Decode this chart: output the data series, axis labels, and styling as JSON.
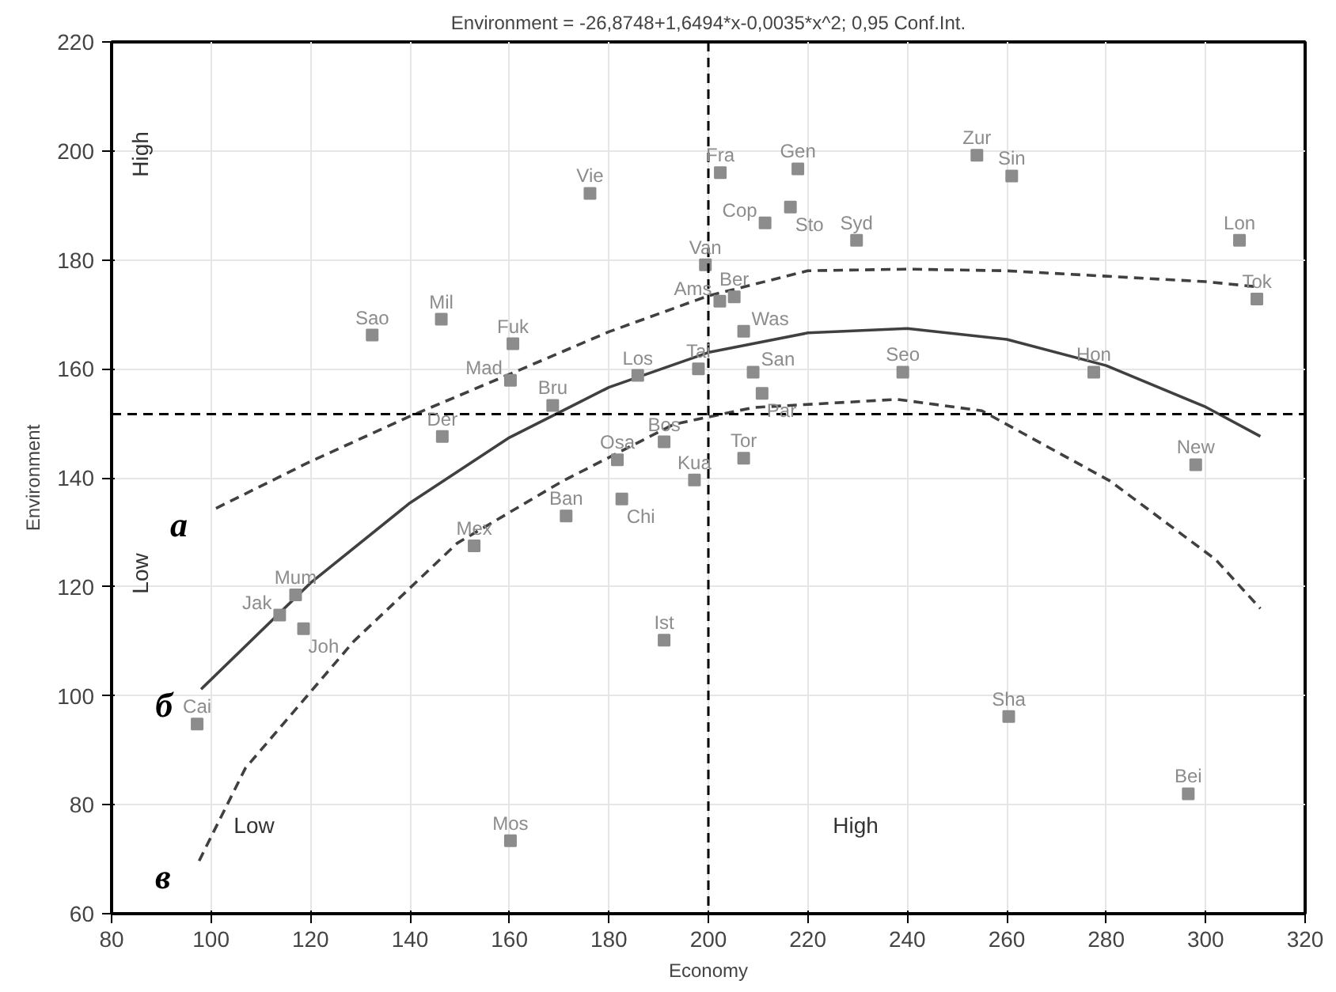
{
  "chart_data": {
    "type": "scatter",
    "title": "Environment = -26,8748+1,6494*x-0,0035*x^2; 0,95 Conf.Int.",
    "xlabel": "Economy",
    "ylabel": "Environment",
    "xlim": [
      80,
      320
    ],
    "ylim": [
      60,
      220
    ],
    "xticks": [
      80,
      100,
      120,
      140,
      160,
      180,
      200,
      220,
      240,
      260,
      280,
      300,
      320
    ],
    "yticks": [
      60,
      80,
      100,
      120,
      140,
      160,
      180,
      200,
      220
    ],
    "grid": true,
    "marker": "square",
    "ref_lines": [
      {
        "axis": "x",
        "value": 200,
        "line_style": "dashed",
        "color": "#000000"
      },
      {
        "axis": "y",
        "value": 151.7,
        "line_style": "dashed",
        "color": "#000000"
      }
    ],
    "annotations": [
      "High",
      "Low",
      "Low",
      "High"
    ],
    "series": [
      {
        "type": "line",
        "name": "a",
        "marker": "none",
        "line_style": "dashed",
        "color": "#404040",
        "x": [
          101,
          120,
          140,
          160,
          180,
          200,
          220,
          240,
          260,
          280,
          300,
          311
        ],
        "values": [
          134.4,
          143,
          151.3,
          159,
          166.8,
          173.4,
          178,
          178.3,
          178,
          177,
          176,
          175
        ]
      },
      {
        "type": "line",
        "name": "б",
        "marker": "none",
        "line_style": "solid",
        "color": "#404040",
        "x": [
          98,
          120,
          140,
          160,
          180,
          200,
          220,
          240,
          260,
          280,
          300,
          311
        ],
        "values": [
          101.2,
          120.7,
          135.4,
          147.4,
          156.6,
          163.0,
          166.6,
          167.4,
          165.4,
          160.6,
          153.0,
          147.6
        ]
      },
      {
        "type": "line",
        "name": "в",
        "marker": "none",
        "line_style": "dashed",
        "color": "#404040",
        "x": [
          97.6,
          106.9,
          128.7,
          149.5,
          170.7,
          193,
          209,
          238,
          255,
          280.8,
          302,
          311
        ],
        "values": [
          69.7,
          86.7,
          110,
          128,
          139.4,
          149.8,
          152.9,
          154.4,
          152.3,
          139.4,
          125,
          116
        ]
      },
      {
        "name": "Vie",
        "color": "#8c8c8c",
        "x": [
          176.2
        ],
        "values": [
          192.2
        ]
      },
      {
        "name": "Fra",
        "color": "#8c8c8c",
        "x": [
          202.4
        ],
        "values": [
          196
        ]
      },
      {
        "name": "Gen",
        "color": "#8c8c8c",
        "x": [
          218
        ],
        "values": [
          196.7
        ]
      },
      {
        "name": "Zur",
        "color": "#8c8c8c",
        "x": [
          254
        ],
        "values": [
          199.2
        ]
      },
      {
        "name": "Sin",
        "color": "#8c8c8c",
        "x": [
          261
        ],
        "values": [
          195.4
        ]
      },
      {
        "name": "Cop",
        "color": "#8c8c8c",
        "x": [
          211.4
        ],
        "values": [
          186.8
        ]
      },
      {
        "name": "Sto",
        "color": "#8c8c8c",
        "x": [
          216.5
        ],
        "values": [
          189.7
        ]
      },
      {
        "name": "Syd",
        "color": "#8c8c8c",
        "x": [
          229.8
        ],
        "values": [
          183.6
        ]
      },
      {
        "name": "Lon",
        "color": "#8c8c8c",
        "x": [
          306.8
        ],
        "values": [
          183.6
        ]
      },
      {
        "name": "Tok",
        "color": "#8c8c8c",
        "x": [
          310.3
        ],
        "values": [
          172.8
        ]
      },
      {
        "name": "Van",
        "color": "#8c8c8c",
        "x": [
          199.4
        ],
        "values": [
          179.1
        ]
      },
      {
        "name": "Ams",
        "color": "#8c8c8c",
        "x": [
          202.3
        ],
        "values": [
          172.4
        ]
      },
      {
        "name": "Ber",
        "color": "#8c8c8c",
        "x": [
          205.2
        ],
        "values": [
          173.2
        ]
      },
      {
        "name": "Was",
        "color": "#8c8c8c",
        "x": [
          207.1
        ],
        "values": [
          166.9
        ]
      },
      {
        "name": "Sao",
        "color": "#8c8c8c",
        "x": [
          132.4
        ],
        "values": [
          166.2
        ]
      },
      {
        "name": "Mil",
        "color": "#8c8c8c",
        "x": [
          146.3
        ],
        "values": [
          169.1
        ]
      },
      {
        "name": "Fuk",
        "color": "#8c8c8c",
        "x": [
          160.7
        ],
        "values": [
          164.6
        ]
      },
      {
        "name": "Mad",
        "color": "#8c8c8c",
        "x": [
          160.2
        ],
        "values": [
          157.9
        ]
      },
      {
        "name": "Bru",
        "color": "#8c8c8c",
        "x": [
          168.7
        ],
        "values": [
          153.3
        ]
      },
      {
        "name": "Der",
        "color": "#8c8c8c",
        "x": [
          146.5
        ],
        "values": [
          147.6
        ]
      },
      {
        "name": "Los",
        "color": "#8c8c8c",
        "x": [
          185.8
        ],
        "values": [
          158.8
        ]
      },
      {
        "name": "Tai",
        "color": "#8c8c8c",
        "x": [
          198
        ],
        "values": [
          160
        ]
      },
      {
        "name": "San",
        "color": "#8c8c8c",
        "x": [
          209
        ],
        "values": [
          159.4
        ]
      },
      {
        "name": "Par",
        "color": "#8c8c8c",
        "x": [
          210.8
        ],
        "values": [
          155.5
        ]
      },
      {
        "name": "Seo",
        "color": "#8c8c8c",
        "x": [
          239.1
        ],
        "values": [
          159.4
        ]
      },
      {
        "name": "Hon",
        "color": "#8c8c8c",
        "x": [
          277.5
        ],
        "values": [
          159.4
        ]
      },
      {
        "name": "Osa",
        "color": "#8c8c8c",
        "x": [
          181.7
        ],
        "values": [
          143.3
        ]
      },
      {
        "name": "Bos",
        "color": "#8c8c8c",
        "x": [
          191.1
        ],
        "values": [
          146.6
        ]
      },
      {
        "name": "Kua",
        "color": "#8c8c8c",
        "x": [
          197.2
        ],
        "values": [
          139.6
        ]
      },
      {
        "name": "Tor",
        "color": "#8c8c8c",
        "x": [
          207.1
        ],
        "values": [
          143.6
        ]
      },
      {
        "name": "New",
        "color": "#8c8c8c",
        "x": [
          298
        ],
        "values": [
          142.4
        ]
      },
      {
        "name": "Ban",
        "color": "#8c8c8c",
        "x": [
          171.4
        ],
        "values": [
          133
        ]
      },
      {
        "name": "Chi",
        "color": "#8c8c8c",
        "x": [
          182.6
        ],
        "values": [
          136.1
        ]
      },
      {
        "name": "Mex",
        "color": "#8c8c8c",
        "x": [
          152.9
        ],
        "values": [
          127.5
        ]
      },
      {
        "name": "Mum",
        "color": "#8c8c8c",
        "x": [
          117
        ],
        "values": [
          118.5
        ]
      },
      {
        "name": "Jak",
        "color": "#8c8c8c",
        "x": [
          113.8
        ],
        "values": [
          114.8
        ]
      },
      {
        "name": "Joh",
        "color": "#8c8c8c",
        "x": [
          118.6
        ],
        "values": [
          112.3
        ]
      },
      {
        "name": "Ist",
        "color": "#8c8c8c",
        "x": [
          191.1
        ],
        "values": [
          110.2
        ]
      },
      {
        "name": "Cai",
        "color": "#8c8c8c",
        "x": [
          97.2
        ],
        "values": [
          94.8
        ]
      },
      {
        "name": "Sha",
        "color": "#8c8c8c",
        "x": [
          260.4
        ],
        "values": [
          96.2
        ]
      },
      {
        "name": "Bei",
        "color": "#8c8c8c",
        "x": [
          296.5
        ],
        "values": [
          82
        ]
      },
      {
        "name": "Mos",
        "color": "#8c8c8c",
        "x": [
          160.2
        ],
        "values": [
          73.4
        ]
      }
    ]
  }
}
